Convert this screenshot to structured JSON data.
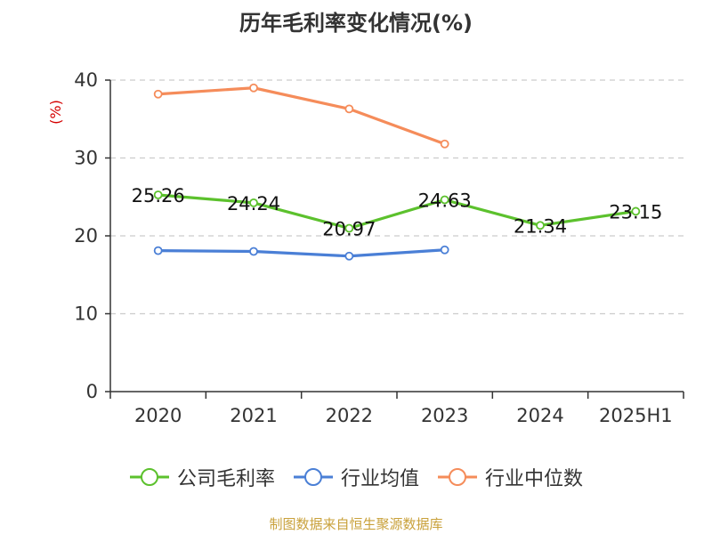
{
  "title": "历年毛利率变化情况(%)",
  "source": "制图数据来自恒生聚源数据库",
  "colors": {
    "company": "#5cc12d",
    "industry_avg": "#4a7fd6",
    "industry_median": "#f58c5a",
    "grid": "#cccccc",
    "axis": "#333333",
    "unit": "#d40000"
  },
  "chart_data": {
    "type": "line",
    "title": "历年毛利率变化情况(%)",
    "ylabel": "(%)",
    "xlabel": "",
    "categories": [
      "2020",
      "2021",
      "2022",
      "2023",
      "2024",
      "2025H1"
    ],
    "ylim": [
      0,
      40
    ],
    "yticks": [
      0,
      10,
      20,
      30,
      40
    ],
    "grid": "horizontal-dashed",
    "legend_position": "bottom",
    "series": [
      {
        "name": "公司毛利率",
        "key": "company",
        "values": [
          25.26,
          24.24,
          20.97,
          24.63,
          21.34,
          23.15
        ],
        "labels": [
          "25.26",
          "24.24",
          "20.97",
          "24.63",
          "21.34",
          "23.15"
        ]
      },
      {
        "name": "行业均值",
        "key": "industry_avg",
        "values": [
          18.1,
          18.0,
          17.4,
          18.2,
          null,
          null
        ]
      },
      {
        "name": "行业中位数",
        "key": "industry_median",
        "values": [
          38.2,
          39.0,
          36.3,
          31.8,
          null,
          null
        ]
      }
    ]
  }
}
